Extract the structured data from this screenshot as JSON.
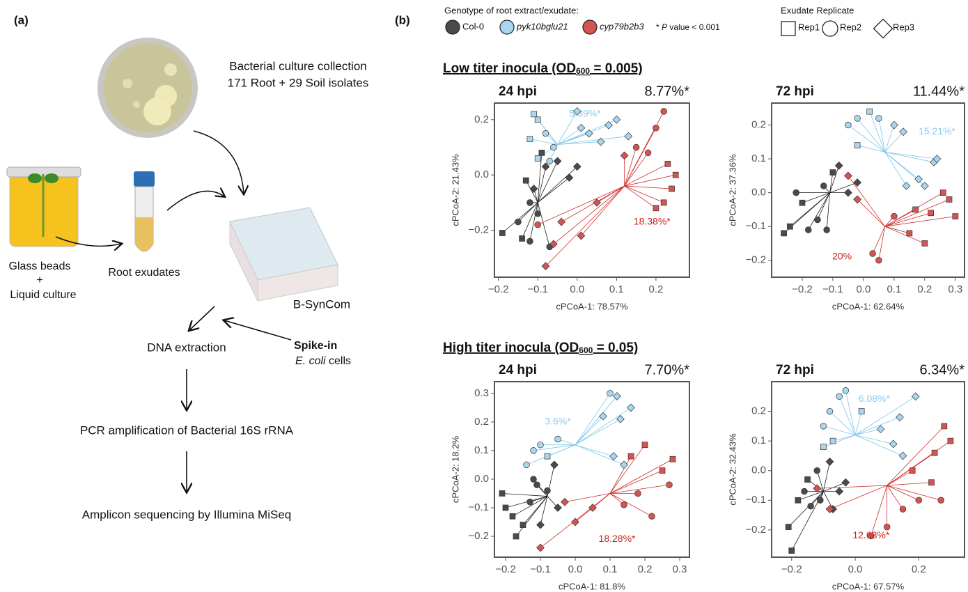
{
  "panel_a": {
    "label": "(a)",
    "culture_line1": "Bacterial culture collection",
    "culture_line2": "171 Root + 29 Soil isolates",
    "beads_line1": "Glass beads",
    "beads_plus": "+",
    "beads_line2": "Liquid culture",
    "exudates": "Root exudates",
    "syncom": "B-SynCom",
    "dna": "DNA extraction",
    "spike_bold": "Spike-in",
    "spike_italic": "E. coli",
    "spike_rest": " cells",
    "pcr": "PCR amplification of Bacterial 16S rRNA",
    "seq": "Amplicon sequencing by Illumina MiSeq"
  },
  "panel_b": {
    "label": "(b)",
    "legend": {
      "title": "Genotype of root extract/exudate:",
      "items": [
        {
          "name": "Col-0",
          "color": "#4a4a4a",
          "line_color": "#1e1e1e"
        },
        {
          "name": "pyk10bglu21",
          "color": "#a9d5ef",
          "line_color": "#7cc5e8"
        },
        {
          "name": "cyp79b2b3",
          "color": "#d65450",
          "line_color": "#cc2a2a"
        }
      ],
      "note_star": "* ",
      "note_p": "P",
      "note_rest": " value < 0.001"
    },
    "replicate_legend": {
      "title": "Exudate Replicate",
      "items": [
        "Rep1",
        "Rep2",
        "Rep3"
      ]
    },
    "low_heading": {
      "text": "Low titer inocula (OD",
      "sub": "600",
      "rest": " = 0.005)"
    },
    "high_heading": {
      "text": "High titer inocula (OD",
      "sub": "600",
      "rest": " = 0.05)"
    }
  },
  "chart_data": [
    {
      "type": "scatter",
      "title": "24 hpi",
      "subtitle": "8.77%*",
      "xlabel": "cPCoA-1: 78.57%",
      "ylabel": "cPCoA-2: 21.43%",
      "xlim": [
        -0.21,
        0.285
      ],
      "ylim": [
        -0.37,
        0.26
      ],
      "xticks": [
        {
          "value": -0.2,
          "label": "−0.2"
        },
        {
          "value": -0.1,
          "label": "−0.1"
        },
        {
          "value": 0,
          "label": "0.0"
        },
        0.1,
        0.2
      ],
      "yticks": [
        {
          "value": -0.2,
          "label": "−0.2"
        },
        {
          "value": 0,
          "label": "0.0"
        },
        0.2
      ],
      "series": [
        {
          "centroid": [
            -0.1,
            -0.1
          ],
          "x": [
            -0.19,
            -0.15,
            -0.14,
            -0.12,
            -0.11,
            -0.08,
            -0.05,
            -0.02,
            0.0,
            -0.13,
            -0.1,
            -0.07,
            -0.09,
            -0.12
          ],
          "y": [
            -0.21,
            -0.17,
            -0.23,
            -0.24,
            -0.05,
            0.03,
            0.05,
            -0.01,
            0.03,
            -0.02,
            -0.14,
            -0.26,
            0.08,
            -0.1
          ],
          "replicate": [
            0,
            1,
            0,
            1,
            2,
            2,
            2,
            2,
            2,
            0,
            1,
            1,
            0,
            1
          ]
        },
        {
          "centroid": [
            -0.05,
            0.11
          ],
          "x": [
            -0.11,
            -0.1,
            -0.12,
            -0.08,
            -0.06,
            -0.07,
            0.01,
            0.03,
            0.06,
            0.08,
            0.1,
            0.13,
            0.0,
            -0.1
          ],
          "y": [
            0.22,
            0.2,
            0.13,
            0.15,
            0.1,
            0.05,
            0.17,
            0.15,
            0.12,
            0.18,
            0.2,
            0.14,
            0.23,
            0.06
          ],
          "replicate": [
            0,
            0,
            0,
            1,
            1,
            1,
            2,
            2,
            2,
            2,
            2,
            2,
            2,
            0
          ]
        },
        {
          "centroid": [
            0.12,
            -0.04
          ],
          "x": [
            0.22,
            0.2,
            0.25,
            0.24,
            0.22,
            0.2,
            0.15,
            0.18,
            0.12,
            -0.04,
            -0.06,
            -0.08,
            0.01,
            -0.1,
            0.05,
            0.23
          ],
          "y": [
            0.23,
            0.17,
            0.0,
            -0.05,
            -0.1,
            -0.12,
            0.1,
            0.08,
            0.07,
            -0.17,
            -0.25,
            -0.33,
            -0.22,
            -0.18,
            -0.1,
            0.04
          ],
          "replicate": [
            1,
            1,
            0,
            0,
            0,
            0,
            1,
            1,
            2,
            2,
            2,
            2,
            2,
            1,
            2,
            0
          ]
        }
      ],
      "annotations": [
        {
          "text": "5.39%*",
          "x": 0.02,
          "y": 0.22,
          "color": "#8ccbee"
        },
        {
          "text": "18.38%*",
          "x": 0.19,
          "y": -0.17,
          "color": "#cc2222"
        }
      ]
    },
    {
      "type": "scatter",
      "title": "72 hpi",
      "subtitle": "11.44%*",
      "xlabel": "cPCoA-1: 62.64%",
      "ylabel": "cPCoA-2: 37.36%",
      "xlim": [
        -0.3,
        0.33
      ],
      "ylim": [
        -0.25,
        0.265
      ],
      "xticks": [
        {
          "value": -0.2,
          "label": "−0.2"
        },
        {
          "value": -0.1,
          "label": "−0.1"
        },
        {
          "value": 0,
          "label": "0.0"
        },
        0.1,
        0.2,
        0.3
      ],
      "yticks": [
        {
          "value": -0.2,
          "label": "−0.2"
        },
        {
          "value": -0.1,
          "label": "−0.1"
        },
        {
          "value": 0,
          "label": "0.0"
        },
        0.1,
        0.2
      ],
      "series": [
        {
          "centroid": [
            -0.11,
            0.0
          ],
          "x": [
            -0.26,
            -0.24,
            -0.2,
            -0.22,
            -0.15,
            -0.12,
            -0.1,
            -0.08,
            -0.05,
            -0.02,
            -0.13,
            -0.18
          ],
          "y": [
            -0.12,
            -0.1,
            -0.03,
            0.0,
            -0.08,
            -0.11,
            0.06,
            0.08,
            0.0,
            0.03,
            0.02,
            -0.11
          ],
          "replicate": [
            0,
            0,
            0,
            1,
            1,
            1,
            0,
            2,
            2,
            2,
            1,
            1
          ]
        },
        {
          "centroid": [
            0.07,
            0.12
          ],
          "x": [
            -0.05,
            -0.02,
            0.02,
            0.05,
            0.1,
            0.13,
            -0.02,
            0.18,
            0.2,
            0.23,
            0.24,
            0.14
          ],
          "y": [
            0.2,
            0.22,
            0.24,
            0.22,
            0.2,
            0.18,
            0.14,
            0.04,
            0.02,
            0.09,
            0.1,
            0.02
          ],
          "replicate": [
            1,
            1,
            0,
            1,
            2,
            2,
            0,
            2,
            2,
            2,
            2,
            2
          ]
        },
        {
          "centroid": [
            0.07,
            -0.1
          ],
          "x": [
            0.28,
            0.3,
            0.22,
            0.2,
            0.15,
            0.05,
            0.03,
            0.1,
            -0.02,
            -0.05,
            0.26,
            0.17
          ],
          "y": [
            -0.02,
            -0.07,
            -0.06,
            -0.15,
            -0.12,
            -0.2,
            -0.18,
            -0.07,
            -0.02,
            0.05,
            0.0,
            -0.05
          ],
          "replicate": [
            0,
            0,
            0,
            0,
            0,
            1,
            1,
            1,
            2,
            2,
            0,
            0
          ]
        }
      ],
      "annotations": [
        {
          "text": "15.21%*",
          "x": 0.24,
          "y": 0.18,
          "color": "#8ccbee"
        },
        {
          "text": "20%",
          "x": -0.07,
          "y": -0.19,
          "color": "#cc2222"
        }
      ]
    },
    {
      "type": "scatter",
      "title": "24 hpi",
      "subtitle": "7.70%*",
      "xlabel": "cPCoA-1: 81.8%",
      "ylabel": "cPCoA-2: 18.2%",
      "xlim": [
        -0.232,
        0.328
      ],
      "ylim": [
        -0.273,
        0.341
      ],
      "xticks": [
        {
          "value": -0.2,
          "label": "−0.2"
        },
        {
          "value": -0.1,
          "label": "−0.1"
        },
        {
          "value": 0,
          "label": "0.0"
        },
        0.1,
        0.2,
        0.3
      ],
      "yticks": [
        {
          "value": -0.2,
          "label": "−0.2"
        },
        {
          "value": -0.1,
          "label": "−0.1"
        },
        {
          "value": 0,
          "label": "0.0"
        },
        0.1,
        0.2,
        0.3
      ],
      "series": [
        {
          "centroid": [
            -0.08,
            -0.06
          ],
          "x": [
            -0.21,
            -0.2,
            -0.18,
            -0.17,
            -0.15,
            -0.11,
            -0.12,
            -0.08,
            -0.05,
            -0.1,
            -0.13,
            -0.06
          ],
          "y": [
            -0.05,
            -0.1,
            -0.13,
            -0.2,
            -0.16,
            -0.02,
            0.0,
            -0.04,
            -0.1,
            -0.16,
            -0.08,
            0.05
          ],
          "replicate": [
            0,
            0,
            0,
            0,
            0,
            1,
            1,
            1,
            2,
            2,
            1,
            2
          ]
        },
        {
          "centroid": [
            0.0,
            0.12
          ],
          "x": [
            -0.14,
            -0.12,
            -0.08,
            -0.05,
            -0.1,
            0.1,
            0.12,
            0.16,
            0.13,
            0.08,
            0.11,
            0.14
          ],
          "y": [
            0.05,
            0.1,
            0.08,
            0.14,
            0.12,
            0.3,
            0.29,
            0.25,
            0.21,
            0.22,
            0.08,
            0.05
          ],
          "replicate": [
            1,
            1,
            0,
            1,
            1,
            1,
            2,
            2,
            2,
            2,
            2,
            2
          ]
        },
        {
          "centroid": [
            0.1,
            -0.05
          ],
          "x": [
            0.28,
            0.25,
            0.2,
            0.18,
            0.14,
            0.22,
            0.05,
            -0.03,
            -0.1,
            0.0,
            0.16,
            0.27
          ],
          "y": [
            0.07,
            0.03,
            0.12,
            -0.05,
            -0.09,
            -0.13,
            -0.1,
            -0.08,
            -0.24,
            -0.15,
            0.08,
            -0.02
          ],
          "replicate": [
            0,
            0,
            0,
            1,
            1,
            1,
            2,
            2,
            2,
            2,
            0,
            1
          ]
        }
      ],
      "annotations": [
        {
          "text": "3.6%*",
          "x": -0.05,
          "y": 0.2,
          "color": "#8ccbee"
        },
        {
          "text": "18.28%*",
          "x": 0.12,
          "y": -0.21,
          "color": "#cc2222"
        }
      ]
    },
    {
      "type": "scatter",
      "title": "72 hpi",
      "subtitle": "6.34%*",
      "xlabel": "cPCoA-1: 67.57%",
      "ylabel": "cPCoA-2: 32.43%",
      "xlim": [
        -0.263,
        0.344
      ],
      "ylim": [
        -0.292,
        0.3
      ],
      "xticks": [
        {
          "value": -0.2,
          "label": "−0.2"
        },
        {
          "value": 0,
          "label": "0.0"
        },
        0.2
      ],
      "yticks": [
        {
          "value": -0.2,
          "label": "−0.2"
        },
        {
          "value": -0.1,
          "label": "−0.1"
        },
        {
          "value": 0,
          "label": "0.0"
        },
        0.1,
        0.2
      ],
      "series": [
        {
          "centroid": [
            -0.1,
            -0.07
          ],
          "x": [
            -0.21,
            -0.2,
            -0.18,
            -0.16,
            -0.14,
            -0.12,
            -0.08,
            -0.05,
            -0.03,
            -0.11,
            -0.07,
            -0.15
          ],
          "y": [
            -0.19,
            -0.27,
            -0.1,
            -0.07,
            -0.12,
            0.0,
            0.03,
            -0.07,
            -0.04,
            -0.1,
            -0.13,
            -0.03
          ],
          "replicate": [
            0,
            0,
            0,
            1,
            1,
            1,
            2,
            2,
            2,
            1,
            2,
            0
          ]
        },
        {
          "centroid": [
            0.0,
            0.12
          ],
          "x": [
            -0.1,
            -0.08,
            -0.05,
            -0.03,
            -0.07,
            -0.1,
            0.02,
            0.08,
            0.12,
            0.14,
            0.19,
            0.15
          ],
          "y": [
            0.15,
            0.2,
            0.25,
            0.27,
            0.1,
            0.08,
            0.2,
            0.14,
            0.09,
            0.18,
            0.25,
            0.05
          ],
          "replicate": [
            1,
            1,
            1,
            1,
            0,
            0,
            0,
            2,
            2,
            2,
            2,
            2
          ]
        },
        {
          "centroid": [
            0.1,
            -0.05
          ],
          "x": [
            0.28,
            0.3,
            0.25,
            0.24,
            0.2,
            0.15,
            0.05,
            -0.08,
            -0.12,
            0.1,
            0.18,
            0.27
          ],
          "y": [
            0.15,
            0.1,
            0.06,
            -0.04,
            -0.1,
            -0.13,
            -0.22,
            -0.13,
            -0.06,
            -0.19,
            0.0,
            -0.1
          ],
          "replicate": [
            0,
            0,
            0,
            0,
            1,
            1,
            1,
            2,
            2,
            1,
            0,
            1
          ]
        }
      ],
      "annotations": [
        {
          "text": "6.08%*",
          "x": 0.06,
          "y": 0.24,
          "color": "#8ccbee"
        },
        {
          "text": "12.68%*",
          "x": 0.05,
          "y": -0.22,
          "color": "#cc2222"
        }
      ]
    }
  ]
}
